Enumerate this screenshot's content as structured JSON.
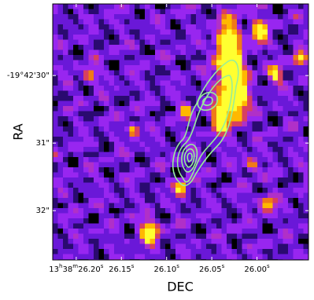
{
  "chart_data": {
    "type": "image",
    "xlabel": "DEC",
    "ylabel": "RA",
    "xlim": [
      26.226,
      25.943
    ],
    "ylim": [
      32.73,
      28.94
    ],
    "xticks": [
      {
        "value": 26.2,
        "label": "13h38m26.20s"
      },
      {
        "value": 26.15,
        "label": "26.15s"
      },
      {
        "value": 26.1,
        "label": "26.10s"
      },
      {
        "value": 26.05,
        "label": "26.05s"
      },
      {
        "value": 26.0,
        "label": "26.00s"
      }
    ],
    "yticks": [
      {
        "value": 30,
        "label": "-19°42'30\""
      },
      {
        "value": 31,
        "label": "31\""
      },
      {
        "value": 32,
        "label": "32\""
      }
    ],
    "contour_color": "#98ee98"
  }
}
